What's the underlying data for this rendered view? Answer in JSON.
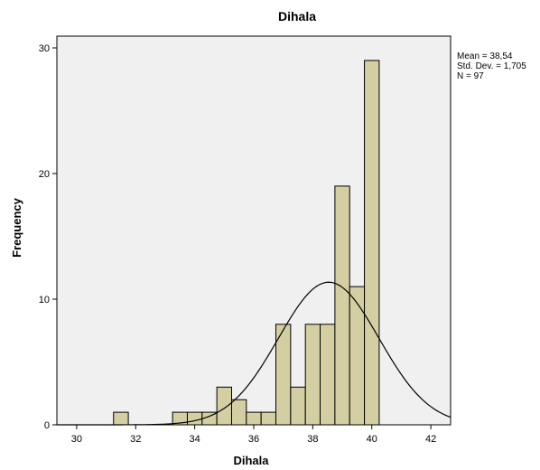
{
  "chart_data": {
    "type": "bar",
    "title": "Dihala",
    "xlabel": "Dihala",
    "ylabel": "Frequency",
    "xlim": [
      29.33,
      42.67
    ],
    "ylim": [
      0,
      30
    ],
    "x_ticks": [
      30,
      32,
      34,
      36,
      38,
      40,
      42
    ],
    "y_ticks": [
      0,
      10,
      20,
      30
    ],
    "bin_width": 0.5,
    "bins": [
      {
        "start": 31.25,
        "value": 1
      },
      {
        "start": 33.25,
        "value": 1
      },
      {
        "start": 33.75,
        "value": 1
      },
      {
        "start": 34.25,
        "value": 1
      },
      {
        "start": 34.75,
        "value": 3
      },
      {
        "start": 35.25,
        "value": 2
      },
      {
        "start": 35.75,
        "value": 1
      },
      {
        "start": 36.25,
        "value": 1
      },
      {
        "start": 36.75,
        "value": 8
      },
      {
        "start": 37.25,
        "value": 3
      },
      {
        "start": 37.75,
        "value": 8
      },
      {
        "start": 38.25,
        "value": 8
      },
      {
        "start": 38.75,
        "value": 19
      },
      {
        "start": 39.25,
        "value": 11
      },
      {
        "start": 39.75,
        "value": 29
      }
    ],
    "normal_curve": {
      "mean": 38.54,
      "sd": 1.705,
      "n": 97
    },
    "stats_lines": [
      "Mean = 38,54",
      "Std. Dev. = 1,705",
      "N = 97"
    ],
    "colors": {
      "bar_fill": "#d4cfa3",
      "bar_stroke": "#000000",
      "plot_bg": "#f0f0f0",
      "curve": "#000000"
    },
    "grid": false
  }
}
